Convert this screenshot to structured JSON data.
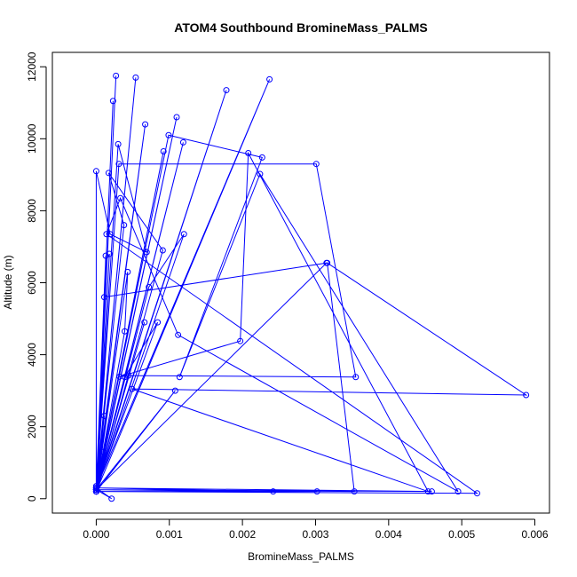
{
  "chart_data": {
    "type": "line",
    "title": "ATOM4 Southbound BromineMass_PALMS",
    "xlabel": "BromineMass_PALMS",
    "ylabel": "Altitude (m)",
    "xlim": [
      -0.0006,
      0.0062
    ],
    "ylim": [
      -400,
      12400
    ],
    "xticks": [
      0,
      0.001,
      0.002,
      0.003,
      0.004,
      0.005,
      0.006
    ],
    "xtick_labels": [
      "0.000",
      "0.001",
      "0.002",
      "0.003",
      "0.004",
      "0.005",
      "0.006"
    ],
    "yticks": [
      0,
      2000,
      4000,
      6000,
      8000,
      10000,
      12000
    ],
    "ytick_labels": [
      "0",
      "2000",
      "4000",
      "6000",
      "8000",
      "10000",
      "12000"
    ],
    "grid": false,
    "legend": "none",
    "colors": {
      "series": "#0000ff",
      "axis": "#000000",
      "background": "#ffffff"
    },
    "series": [
      {
        "x": [
          0.0,
          0.00027,
          0.0,
          0.00054,
          0.0,
          0.00023,
          0.0,
          0.00067,
          0.0,
          0.0011,
          0.0,
          0.00092,
          0.0,
          0.00038,
          0.00017,
          0.00091,
          0.0,
          0.00119,
          0.0,
          0.00178,
          0.0,
          0.00237,
          0.0,
          0.00011,
          0.00315,
          0.0,
          0.00031,
          0.00301,
          0.00355,
          0.00044,
          0.00032,
          0.00197,
          0.00208,
          0.00454,
          0.00049,
          0.00588,
          0.00316,
          0.00353,
          0.0,
          0.00459,
          0.0,
          0.00099,
          0.00227,
          0.00114,
          0.00224,
          0.00495,
          0.00112,
          0.00033,
          0.00014,
          0.00521,
          0.0,
          0.0012,
          0.00072,
          0.0,
          0.00039,
          0.00043,
          0.0,
          0.00018,
          0.0,
          0.0003,
          0.00069,
          0.00019,
          0.0,
          0.0,
          0.00013,
          0.0,
          0.00242,
          0.0,
          0.00021,
          0.0,
          0.0001,
          0.0,
          0.00108,
          0.0,
          0.00302,
          0.0,
          0.00011,
          0.0,
          0.00039,
          0.00084,
          0.0,
          0.00066,
          0.0
        ],
        "y": [
          200,
          11750,
          250,
          11700,
          300,
          11050,
          350,
          10400,
          200,
          10600,
          250,
          9650,
          300,
          7600,
          9050,
          6900,
          200,
          9900,
          250,
          11350,
          300,
          11650,
          200,
          5600,
          6550,
          250,
          9300,
          9300,
          3380,
          3420,
          3390,
          4380,
          9600,
          200,
          3050,
          2880,
          6550,
          200,
          250,
          200,
          300,
          10100,
          9480,
          3380,
          9020,
          200,
          4550,
          8350,
          7350,
          150,
          200,
          7350,
          5880,
          250,
          4650,
          6300,
          200,
          6800,
          250,
          9850,
          6850,
          7350,
          9100,
          250,
          6750,
          300,
          200,
          250,
          1,
          300,
          1300,
          250,
          3000,
          200,
          200,
          200,
          2300,
          250,
          3380,
          4900,
          250,
          4900,
          250
        ]
      }
    ]
  }
}
